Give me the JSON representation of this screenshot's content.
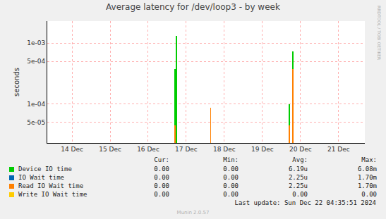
{
  "chart_data": {
    "type": "bar",
    "title": "Average latency for /dev/loop3 - by week",
    "y_label": "seconds",
    "log": "y",
    "grid": true,
    "x": [
      17.2,
      17.24,
      18.14,
      20.21,
      20.3
    ],
    "series": [
      {
        "name": "Device IO time",
        "color": "#00cc00",
        "values": [
          0.00038,
          0.0013,
          8.8e-05,
          0.0001,
          0.00074
        ]
      },
      {
        "name": "IO Wait time",
        "color": "#0066b3",
        "values": [
          4.5e-05,
          null,
          8.8e-05,
          4.5e-05,
          0.00038
        ]
      },
      {
        "name": "Read IO Wait time",
        "color": "#ff8000",
        "values": [
          4.5e-05,
          null,
          8.8e-05,
          4.5e-05,
          0.00038
        ]
      },
      {
        "name": "Write IO Wait time",
        "color": "#ffcc00",
        "values": [
          null,
          null,
          null,
          null,
          null
        ]
      }
    ],
    "xlim": [
      13.85,
      22.19
    ],
    "xticks": [
      {
        "value": 14.5,
        "label": "14 Dec"
      },
      {
        "value": 15.5,
        "label": "15 Dec"
      },
      {
        "value": 16.5,
        "label": "16 Dec"
      },
      {
        "value": 17.5,
        "label": "17 Dec"
      },
      {
        "value": 18.5,
        "label": "18 Dec"
      },
      {
        "value": 19.5,
        "label": "19 Dec"
      },
      {
        "value": 20.5,
        "label": "20 Dec"
      },
      {
        "value": 21.5,
        "label": "21 Dec"
      }
    ],
    "ylim": [
      2.3e-05,
      0.0023
    ],
    "yticks": [
      {
        "value": 5e-05,
        "label": "5e-05"
      },
      {
        "value": 0.0001,
        "label": "1e-04"
      },
      {
        "value": 0.0005,
        "label": "5e-04"
      },
      {
        "value": 0.001,
        "label": "1e-03"
      }
    ],
    "stats": {
      "columns": [
        "Cur:",
        "Min:",
        "Avg:",
        "Max:"
      ],
      "rows": [
        [
          "0.00",
          "0.00",
          "6.19u",
          "6.08m"
        ],
        [
          "0.00",
          "0.00",
          "2.25u",
          "1.70m"
        ],
        [
          "0.00",
          "0.00",
          "2.25u",
          "1.70m"
        ],
        [
          "0.00",
          "0.00",
          "0.00",
          "0.00"
        ]
      ]
    },
    "footer": "Last update: Sun Dec 22 04:35:51 2024",
    "version": "Munin 2.0.57",
    "side_label": "RRDTOOL / TOBI OETIKER"
  }
}
